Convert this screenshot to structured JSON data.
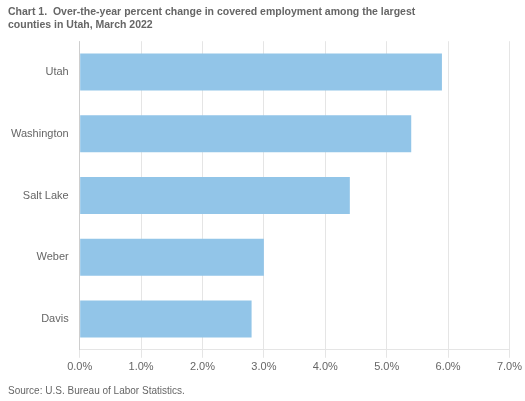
{
  "chart_data": {
    "type": "bar",
    "orientation": "horizontal",
    "title": [
      "Chart 1.  Over-the-year percent change in covered employment among the largest",
      "counties in Utah, March 2022"
    ],
    "source": "Source: U.S. Bureau of Labor Statistics.",
    "categories": [
      "Davis",
      "Weber",
      "Salt Lake",
      "Washington",
      "Utah"
    ],
    "values": [
      0.028,
      0.03,
      0.044,
      0.054,
      0.059
    ],
    "color": "#92C5E8",
    "xlim": [
      0.0,
      0.07
    ],
    "xticks": [
      {
        "value": 0.0,
        "label": "0.0%"
      },
      {
        "value": 0.01,
        "label": "1.0%"
      },
      {
        "value": 0.02,
        "label": "2.0%"
      },
      {
        "value": 0.03,
        "label": "3.0%"
      },
      {
        "value": 0.04,
        "label": "4.0%"
      },
      {
        "value": 0.05,
        "label": "5.0%"
      },
      {
        "value": 0.06,
        "label": "6.0%"
      },
      {
        "value": 0.07,
        "label": "7.0%"
      }
    ],
    "grid": true
  }
}
